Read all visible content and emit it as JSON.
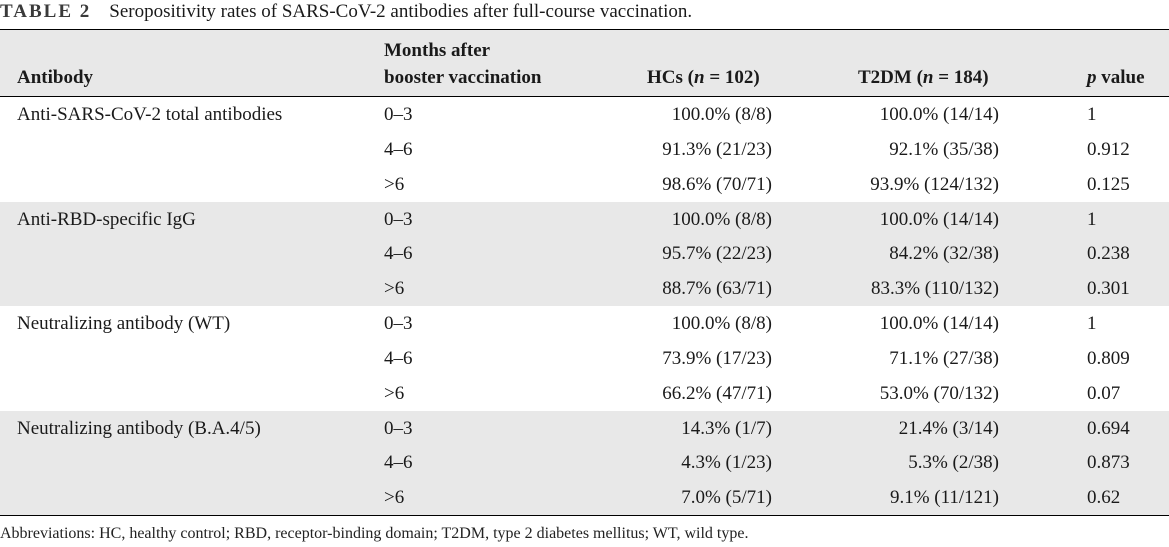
{
  "caption": {
    "label": "TABLE 2",
    "text": "Seropositivity rates of SARS-CoV-2 antibodies after full-course vaccination."
  },
  "header": {
    "antibody": "Antibody",
    "months_line1": "Months after",
    "months_line2": "booster vaccination",
    "hc_prefix": "HCs (",
    "hc_n": "n",
    "hc_suffix": " = 102)",
    "t2_prefix": "T2DM (",
    "t2_n": "n",
    "t2_suffix": " = 184)",
    "p_italic": "p",
    "p_suffix": " value"
  },
  "groups": [
    {
      "antibody": "Anti-SARS-CoV-2 total antibodies",
      "rows": [
        {
          "months": "0–3",
          "hc": "100.0% (8/8)",
          "t2dm": "100.0% (14/14)",
          "p": "1"
        },
        {
          "months": "4–6",
          "hc": "91.3% (21/23)",
          "t2dm": "92.1% (35/38)",
          "p": "0.912"
        },
        {
          "months": ">6",
          "hc": "98.6% (70/71)",
          "t2dm": "93.9% (124/132)",
          "p": "0.125"
        }
      ]
    },
    {
      "antibody": "Anti-RBD-specific IgG",
      "rows": [
        {
          "months": "0–3",
          "hc": "100.0% (8/8)",
          "t2dm": "100.0% (14/14)",
          "p": "1"
        },
        {
          "months": "4–6",
          "hc": "95.7% (22/23)",
          "t2dm": "84.2% (32/38)",
          "p": "0.238"
        },
        {
          "months": ">6",
          "hc": "88.7% (63/71)",
          "t2dm": "83.3% (110/132)",
          "p": "0.301"
        }
      ]
    },
    {
      "antibody": "Neutralizing antibody (WT)",
      "rows": [
        {
          "months": "0–3",
          "hc": "100.0% (8/8)",
          "t2dm": "100.0% (14/14)",
          "p": "1"
        },
        {
          "months": "4–6",
          "hc": "73.9% (17/23)",
          "t2dm": "71.1% (27/38)",
          "p": "0.809"
        },
        {
          "months": ">6",
          "hc": "66.2% (47/71)",
          "t2dm": "53.0% (70/132)",
          "p": "0.07"
        }
      ]
    },
    {
      "antibody": "Neutralizing antibody (B.A.4/5)",
      "rows": [
        {
          "months": "0–3",
          "hc": "14.3% (1/7)",
          "t2dm": "21.4% (3/14)",
          "p": "0.694"
        },
        {
          "months": "4–6",
          "hc": "4.3% (1/23)",
          "t2dm": "5.3% (2/38)",
          "p": "0.873"
        },
        {
          "months": ">6",
          "hc": "7.0% (5/71)",
          "t2dm": "9.1% (11/121)",
          "p": "0.62"
        }
      ]
    }
  ],
  "footnote": "Abbreviations: HC, healthy control; RBD, receptor-binding domain; T2DM, type 2 diabetes mellitus; WT, wild type."
}
